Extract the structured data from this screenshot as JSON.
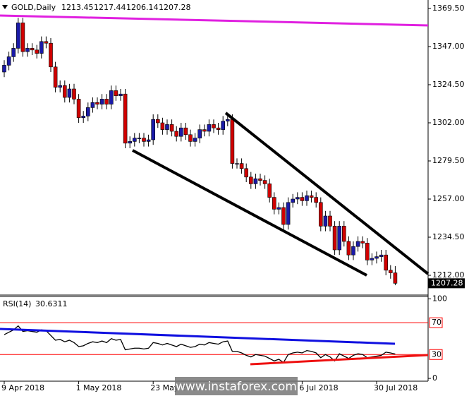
{
  "chart_data": [
    {
      "type": "candlestick",
      "title": "GOLD,Daily",
      "categories": [
        "9 Apr 2018",
        null,
        null,
        null,
        null,
        null,
        null,
        null,
        null,
        null,
        null,
        null,
        null,
        null,
        null,
        null,
        "1 May 2018",
        null,
        null,
        null,
        null,
        null,
        null,
        null,
        null,
        null,
        null,
        null,
        null,
        null,
        null,
        null,
        "23 May 2018",
        null,
        null,
        null,
        null,
        null,
        null,
        null,
        null,
        null,
        null,
        null,
        null,
        null,
        null,
        null,
        null,
        null,
        null,
        null,
        null,
        null,
        null,
        null,
        null,
        null,
        null,
        null,
        null,
        null,
        null,
        null,
        "6 Jul 2018",
        null,
        null,
        null,
        null,
        null,
        null,
        null,
        null,
        null,
        null,
        null,
        null,
        null,
        null,
        null,
        "30 Jul 2018",
        null,
        null,
        null,
        null
      ],
      "open": [
        1332,
        1336,
        1341,
        1346,
        1361,
        1344,
        1346,
        1345,
        1343,
        1350,
        1349,
        1335,
        1323,
        1324,
        1317,
        1322,
        1316,
        1305,
        1306,
        1311,
        1314,
        1313,
        1316,
        1313,
        1321,
        1318,
        1319,
        1290,
        1291,
        1293,
        1293,
        1291,
        1292,
        1304,
        1302,
        1298,
        1301,
        1297,
        1294,
        1299,
        1295,
        1291,
        1293,
        1298,
        1297,
        1301,
        1299,
        1298,
        1303,
        1304,
        1278,
        1278,
        1275,
        1270,
        1266,
        1269,
        1268,
        1266,
        1258,
        1251,
        1252,
        1242,
        1255,
        1257,
        1258,
        1256,
        1259,
        1258,
        1255,
        1241,
        1247,
        1241,
        1227,
        1241,
        1232,
        1224,
        1229,
        1232,
        1231,
        1221,
        1222,
        1223,
        1224,
        1215,
        1213.45
      ],
      "high": [
        1339,
        1344,
        1349,
        1364,
        1364,
        1349,
        1349,
        1348,
        1353,
        1353,
        1352,
        1338,
        1327,
        1327,
        1325,
        1325,
        1319,
        1309,
        1314,
        1317,
        1317,
        1319,
        1319,
        1324,
        1324,
        1322,
        1322,
        1294,
        1296,
        1296,
        1296,
        1295,
        1307,
        1307,
        1305,
        1304,
        1304,
        1300,
        1302,
        1302,
        1298,
        1296,
        1301,
        1301,
        1304,
        1304,
        1302,
        1306,
        1307,
        1307,
        1281,
        1281,
        1278,
        1273,
        1272,
        1272,
        1271,
        1269,
        1261,
        1255,
        1255,
        1258,
        1260,
        1261,
        1261,
        1262,
        1262,
        1261,
        1258,
        1250,
        1250,
        1244,
        1244,
        1244,
        1235,
        1232,
        1235,
        1235,
        1234,
        1225,
        1226,
        1227,
        1227,
        1218,
        1217.44
      ],
      "low": [
        1329,
        1333,
        1338,
        1343,
        1341,
        1341,
        1342,
        1340,
        1340,
        1346,
        1332,
        1320,
        1320,
        1314,
        1314,
        1313,
        1302,
        1302,
        1303,
        1308,
        1310,
        1310,
        1310,
        1310,
        1315,
        1315,
        1287,
        1287,
        1288,
        1290,
        1288,
        1288,
        1289,
        1299,
        1295,
        1295,
        1294,
        1291,
        1291,
        1292,
        1288,
        1288,
        1290,
        1294,
        1294,
        1296,
        1295,
        1295,
        1300,
        1275,
        1275,
        1272,
        1267,
        1263,
        1263,
        1265,
        1263,
        1255,
        1248,
        1248,
        1239,
        1239,
        1252,
        1254,
        1253,
        1253,
        1255,
        1252,
        1238,
        1238,
        1238,
        1224,
        1224,
        1229,
        1221,
        1221,
        1226,
        1228,
        1218,
        1218,
        1219,
        1220,
        1212,
        1210,
        1206.14
      ],
      "close": [
        1336,
        1341,
        1346,
        1361,
        1344,
        1346,
        1345,
        1343,
        1350,
        1349,
        1335,
        1323,
        1324,
        1317,
        1322,
        1316,
        1305,
        1306,
        1311,
        1314,
        1313,
        1316,
        1313,
        1321,
        1318,
        1319,
        1290,
        1291,
        1293,
        1293,
        1291,
        1292,
        1304,
        1302,
        1298,
        1301,
        1297,
        1294,
        1299,
        1295,
        1291,
        1293,
        1298,
        1297,
        1301,
        1299,
        1298,
        1303,
        1304,
        1278,
        1278,
        1275,
        1270,
        1266,
        1269,
        1268,
        1266,
        1258,
        1251,
        1252,
        1242,
        1255,
        1257,
        1258,
        1256,
        1259,
        1258,
        1255,
        1241,
        1247,
        1241,
        1227,
        1241,
        1232,
        1224,
        1229,
        1232,
        1231,
        1221,
        1222,
        1223,
        1224,
        1215,
        1213.45,
        1207.28
      ],
      "up_color": "#1a1aa8",
      "down_color": "#d00000",
      "ylim": [
        1200.75,
        1373.67
      ],
      "yticks": [
        {
          "value": 1369.5,
          "label": "1369.50"
        },
        {
          "value": 1347,
          "label": "1347.00"
        },
        {
          "value": 1324.5,
          "label": "1324.50"
        },
        {
          "value": 1302,
          "label": "1302.00"
        },
        {
          "value": 1279.5,
          "label": "1279.50"
        },
        {
          "value": 1257,
          "label": "1257.00"
        },
        {
          "value": 1234.5,
          "label": "1234.50"
        },
        {
          "value": 1212,
          "label": "1212.00"
        }
      ]
    },
    {
      "type": "line",
      "title": "RSI(14)",
      "color": "#000000",
      "values": [
        55,
        58,
        61,
        66,
        59,
        60,
        59,
        58,
        61,
        60,
        54,
        48,
        49,
        46,
        48,
        45,
        40,
        41,
        44,
        46,
        45,
        47,
        45,
        50,
        48,
        49,
        36,
        37,
        38,
        38,
        37,
        38,
        45,
        44,
        42,
        44,
        42,
        40,
        43,
        41,
        39,
        40,
        43,
        42,
        45,
        44,
        43,
        46,
        47,
        34,
        34,
        32,
        29,
        27,
        30,
        29,
        28,
        25,
        22,
        24,
        20,
        30,
        32,
        33,
        32,
        35,
        34,
        32,
        26,
        30,
        27,
        22,
        31,
        28,
        25,
        29,
        31,
        30,
        26,
        27,
        28,
        29,
        33,
        32,
        30.6311
      ],
      "ylim": [
        -3.5,
        103
      ],
      "yticks": [
        100,
        0
      ],
      "levels": [
        70,
        30
      ],
      "level_color": "#ff0000"
    }
  ],
  "watermark": "www.instaforex.com"
}
